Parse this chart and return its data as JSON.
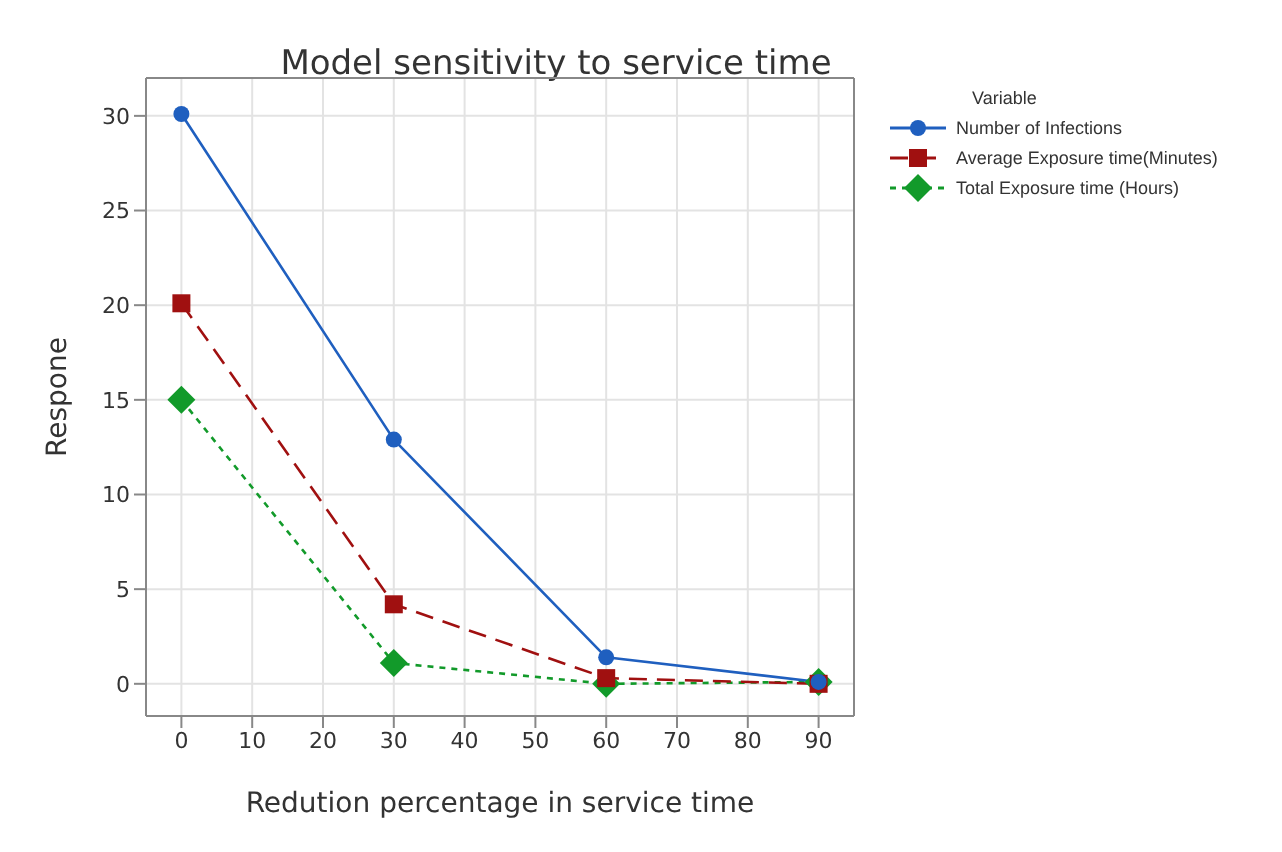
{
  "chart_data": {
    "type": "line",
    "title": "Model sensitivity to service time",
    "xlabel": "Redution percentage in service time",
    "ylabel": "Respone",
    "legend_title": "Variable",
    "x": [
      0,
      30,
      60,
      90
    ],
    "series": [
      {
        "name": "Number of Infections",
        "color": "#1f5fbf",
        "values": [
          30.1,
          12.9,
          1.4,
          0.1
        ],
        "marker": "circle",
        "line_style": "solid"
      },
      {
        "name": "Average Exposure time(Minutes)",
        "color": "#a01010",
        "values": [
          20.1,
          4.2,
          0.3,
          0
        ],
        "marker": "square",
        "line_style": "dashed"
      },
      {
        "name": "Total Exposure time (Hours)",
        "color": "#129a2a",
        "values": [
          15,
          1.1,
          0,
          0.1
        ],
        "marker": "diamond",
        "line_style": "dotted"
      }
    ],
    "xlim": [
      -5,
      95
    ],
    "xticks": [
      0,
      10,
      20,
      30,
      40,
      50,
      60,
      70,
      80,
      90
    ],
    "ylim": [
      -1.7,
      32
    ],
    "yticks": [
      0,
      5,
      10,
      15,
      20,
      25,
      30
    ],
    "grid": true,
    "legend": "top right"
  }
}
